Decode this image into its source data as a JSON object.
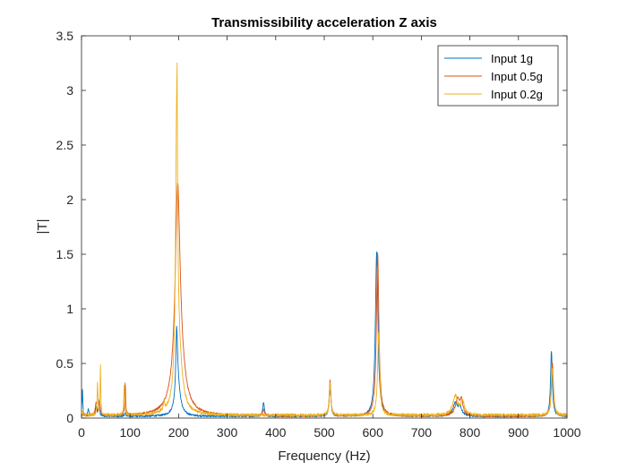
{
  "chart_data": {
    "type": "line",
    "title": "Transmissibility acceleration Z axis",
    "xlabel": "Frequency (Hz)",
    "ylabel": "|T|",
    "xlim": [
      0,
      1000
    ],
    "ylim": [
      0,
      3.5
    ],
    "xticks": [
      0,
      100,
      200,
      300,
      400,
      500,
      600,
      700,
      800,
      900,
      1000
    ],
    "yticks": [
      0,
      0.5,
      1,
      1.5,
      2,
      2.5,
      3,
      3.5
    ],
    "xtick_labels": [
      "0",
      "100",
      "200",
      "300",
      "400",
      "500",
      "600",
      "700",
      "800",
      "900",
      "1000"
    ],
    "ytick_labels": [
      "0",
      "0.5",
      "1",
      "1.5",
      "2",
      "2.5",
      "3",
      "3.5"
    ],
    "grid": false,
    "legend_position": "top-right",
    "series": [
      {
        "name": "Input 1g",
        "color": "#0072BD",
        "noise": 0.012,
        "peaks": [
          {
            "f": 2,
            "a": 0.2,
            "w": 1.0
          },
          {
            "f": 14,
            "a": 0.06,
            "w": 2
          },
          {
            "f": 30,
            "a": 0.08,
            "w": 2
          },
          {
            "f": 36,
            "a": 0.13,
            "w": 1.2
          },
          {
            "f": 90,
            "a": 0.03,
            "w": 1.5
          },
          {
            "f": 196,
            "a": 0.55,
            "w": 2.0
          },
          {
            "f": 198,
            "a": 0.3,
            "w": 6.0
          },
          {
            "f": 375,
            "a": 0.13,
            "w": 2.0
          },
          {
            "f": 512,
            "a": 0.3,
            "w": 2.0
          },
          {
            "f": 608,
            "a": 1.5,
            "w": 3.2
          },
          {
            "f": 770,
            "a": 0.12,
            "w": 6
          },
          {
            "f": 780,
            "a": 0.07,
            "w": 4
          },
          {
            "f": 968,
            "a": 0.6,
            "w": 2.2
          }
        ]
      },
      {
        "name": "Input 0.5g",
        "color": "#D95319",
        "noise": 0.014,
        "peaks": [
          {
            "f": 30,
            "a": 0.12,
            "w": 2
          },
          {
            "f": 37,
            "a": 0.14,
            "w": 1.5
          },
          {
            "f": 90,
            "a": 0.3,
            "w": 1.0
          },
          {
            "f": 198,
            "a": 1.55,
            "w": 5.5
          },
          {
            "f": 200,
            "a": 0.6,
            "w": 12
          },
          {
            "f": 375,
            "a": 0.06,
            "w": 2.0
          },
          {
            "f": 512,
            "a": 0.32,
            "w": 2.0
          },
          {
            "f": 610,
            "a": 1.5,
            "w": 3.0
          },
          {
            "f": 775,
            "a": 0.15,
            "w": 6
          },
          {
            "f": 783,
            "a": 0.12,
            "w": 3
          },
          {
            "f": 970,
            "a": 0.48,
            "w": 2.5
          }
        ]
      },
      {
        "name": "Input 0.2g",
        "color": "#EDB120",
        "noise": 0.02,
        "peaks": [
          {
            "f": 33,
            "a": 0.3,
            "w": 1.0
          },
          {
            "f": 39,
            "a": 0.45,
            "w": 0.8
          },
          {
            "f": 88,
            "a": 0.28,
            "w": 1.0
          },
          {
            "f": 170,
            "a": 0.08,
            "w": 1.5
          },
          {
            "f": 196,
            "a": 2.4,
            "w": 2.5
          },
          {
            "f": 197,
            "a": 0.7,
            "w": 0.5
          },
          {
            "f": 200,
            "a": 0.5,
            "w": 9
          },
          {
            "f": 512,
            "a": 0.3,
            "w": 2.0
          },
          {
            "f": 612,
            "a": 0.75,
            "w": 2.5
          },
          {
            "f": 770,
            "a": 0.18,
            "w": 6
          },
          {
            "f": 785,
            "a": 0.12,
            "w": 4
          },
          {
            "f": 970,
            "a": 0.42,
            "w": 2.5
          }
        ]
      }
    ]
  }
}
